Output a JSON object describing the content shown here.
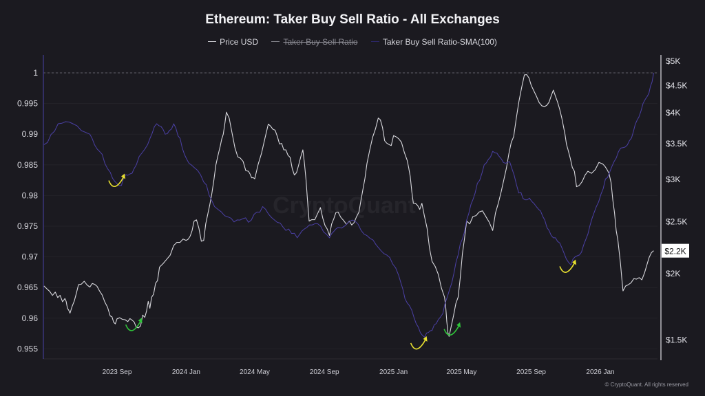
{
  "chart_data": {
    "type": "line",
    "title": "Ethereum: Taker Buy Sell Ratio - All Exchanges",
    "legend": [
      {
        "name": "Price USD",
        "color": "#d9d9de",
        "hidden": false
      },
      {
        "name": "Taker Buy Sell Ratio",
        "color": "#8a8a92",
        "hidden": true
      },
      {
        "name": "Taker Buy Sell Ratio-SMA(100)",
        "color": "#4b40a6",
        "hidden": false
      }
    ],
    "legend_placement": "top-center",
    "x_ticks": [
      "2023 Sep",
      "2024 Jan",
      "2024 May",
      "2024 Sep",
      "2025 Jan",
      "2025 May",
      "2025 Sep",
      "2026 Jan"
    ],
    "x_tick_dates": [
      "2023-09-01",
      "2024-01-01",
      "2024-05-01",
      "2024-09-01",
      "2025-01-01",
      "2025-05-01",
      "2025-09-01",
      "2026-01-01"
    ],
    "y_left": {
      "ticks": [
        "1",
        "0.995",
        "0.99",
        "0.985",
        "0.98",
        "0.975",
        "0.97",
        "0.965",
        "0.96",
        "0.955"
      ],
      "range": [
        0.953,
        1.003
      ]
    },
    "y_right": {
      "scale": "log",
      "ticks": [
        "$5K",
        "$4.5K",
        "$4K",
        "$3.5K",
        "$3K",
        "$2.5K",
        "$2K",
        "$1.5K"
      ],
      "tick_values": [
        5000,
        4500,
        4000,
        3500,
        3000,
        2500,
        2000,
        1500
      ],
      "current_label": "$2.2K"
    },
    "reference_line": 1,
    "watermark": "CryptoQuant",
    "copyright": "© CryptoQuant. All rights reserved",
    "series": [
      {
        "name": "Price USD",
        "axis": "right",
        "color": "#d9d9de",
        "points": [
          [
            "2023-04-25",
            1890
          ],
          [
            "2023-05-15",
            1840
          ],
          [
            "2023-06-01",
            1790
          ],
          [
            "2023-06-10",
            1680
          ],
          [
            "2023-06-25",
            1900
          ],
          [
            "2023-07-15",
            1880
          ],
          [
            "2023-08-01",
            1850
          ],
          [
            "2023-08-20",
            1660
          ],
          [
            "2023-09-01",
            1640
          ],
          [
            "2023-09-20",
            1620
          ],
          [
            "2023-10-05",
            1580
          ],
          [
            "2023-10-20",
            1650
          ],
          [
            "2023-11-01",
            1800
          ],
          [
            "2023-11-15",
            2050
          ],
          [
            "2023-12-10",
            2250
          ],
          [
            "2024-01-01",
            2300
          ],
          [
            "2024-01-15",
            2500
          ],
          [
            "2024-02-01",
            2300
          ],
          [
            "2024-02-15",
            2800
          ],
          [
            "2024-03-01",
            3450
          ],
          [
            "2024-03-12",
            4000
          ],
          [
            "2024-04-01",
            3300
          ],
          [
            "2024-04-20",
            3100
          ],
          [
            "2024-05-01",
            3000
          ],
          [
            "2024-05-25",
            3800
          ],
          [
            "2024-06-10",
            3600
          ],
          [
            "2024-06-25",
            3400
          ],
          [
            "2024-07-10",
            3050
          ],
          [
            "2024-07-25",
            3400
          ],
          [
            "2024-08-05",
            2500
          ],
          [
            "2024-08-25",
            2650
          ],
          [
            "2024-09-10",
            2350
          ],
          [
            "2024-09-25",
            2600
          ],
          [
            "2024-10-15",
            2500
          ],
          [
            "2024-11-01",
            2600
          ],
          [
            "2024-11-15",
            3200
          ],
          [
            "2024-12-05",
            3900
          ],
          [
            "2024-12-20",
            3500
          ],
          [
            "2025-01-05",
            3600
          ],
          [
            "2025-01-25",
            3250
          ],
          [
            "2025-02-05",
            2700
          ],
          [
            "2025-02-20",
            2700
          ],
          [
            "2025-03-10",
            2100
          ],
          [
            "2025-04-01",
            1800
          ],
          [
            "2025-04-09",
            1520
          ],
          [
            "2025-04-25",
            1800
          ],
          [
            "2025-05-10",
            2500
          ],
          [
            "2025-06-01",
            2600
          ],
          [
            "2025-06-25",
            2400
          ],
          [
            "2025-07-15",
            3000
          ],
          [
            "2025-08-01",
            3600
          ],
          [
            "2025-08-20",
            4700
          ],
          [
            "2025-09-05",
            4400
          ],
          [
            "2025-09-25",
            4100
          ],
          [
            "2025-10-10",
            4400
          ],
          [
            "2025-10-25",
            3900
          ],
          [
            "2025-11-05",
            3400
          ],
          [
            "2025-11-20",
            2900
          ],
          [
            "2025-12-10",
            3100
          ],
          [
            "2026-01-05",
            3200
          ],
          [
            "2026-01-20",
            2950
          ],
          [
            "2026-02-01",
            2300
          ],
          [
            "2026-02-10",
            1850
          ],
          [
            "2026-03-01",
            1950
          ],
          [
            "2026-03-20",
            2000
          ],
          [
            "2026-04-05",
            2200
          ]
        ]
      },
      {
        "name": "Taker Buy Sell Ratio-SMA(100)",
        "axis": "left",
        "color": "#4b40a6",
        "points": [
          [
            "2023-04-25",
            0.9883
          ],
          [
            "2023-05-20",
            0.9917
          ],
          [
            "2023-06-15",
            0.9917
          ],
          [
            "2023-07-15",
            0.99
          ],
          [
            "2023-08-01",
            0.9872
          ],
          [
            "2023-08-20",
            0.9838
          ],
          [
            "2023-09-05",
            0.9816
          ],
          [
            "2023-09-20",
            0.9833
          ],
          [
            "2023-10-05",
            0.985
          ],
          [
            "2023-10-25",
            0.9883
          ],
          [
            "2023-11-10",
            0.9917
          ],
          [
            "2023-11-25",
            0.99
          ],
          [
            "2023-12-10",
            0.9917
          ],
          [
            "2023-12-25",
            0.9878
          ],
          [
            "2024-01-10",
            0.985
          ],
          [
            "2024-02-01",
            0.9822
          ],
          [
            "2024-02-20",
            0.9782
          ],
          [
            "2024-03-15",
            0.9765
          ],
          [
            "2024-04-05",
            0.976
          ],
          [
            "2024-04-25",
            0.976
          ],
          [
            "2024-05-15",
            0.9782
          ],
          [
            "2024-06-05",
            0.976
          ],
          [
            "2024-06-25",
            0.9743
          ],
          [
            "2024-07-15",
            0.9731
          ],
          [
            "2024-08-01",
            0.9748
          ],
          [
            "2024-08-20",
            0.9754
          ],
          [
            "2024-09-10",
            0.9731
          ],
          [
            "2024-09-25",
            0.9748
          ],
          [
            "2024-10-20",
            0.976
          ],
          [
            "2024-11-10",
            0.9737
          ],
          [
            "2024-12-01",
            0.972
          ],
          [
            "2024-12-20",
            0.9703
          ],
          [
            "2025-01-10",
            0.967
          ],
          [
            "2025-01-25",
            0.9625
          ],
          [
            "2025-02-10",
            0.9591
          ],
          [
            "2025-02-25",
            0.9569
          ],
          [
            "2025-03-10",
            0.958
          ],
          [
            "2025-03-25",
            0.9602
          ],
          [
            "2025-04-10",
            0.9647
          ],
          [
            "2025-04-25",
            0.9703
          ],
          [
            "2025-05-10",
            0.976
          ],
          [
            "2025-05-25",
            0.9804
          ],
          [
            "2025-06-10",
            0.985
          ],
          [
            "2025-06-25",
            0.9872
          ],
          [
            "2025-07-10",
            0.986
          ],
          [
            "2025-07-25",
            0.9855
          ],
          [
            "2025-08-10",
            0.9804
          ],
          [
            "2025-08-25",
            0.9793
          ],
          [
            "2025-09-10",
            0.9782
          ],
          [
            "2025-09-25",
            0.976
          ],
          [
            "2025-10-10",
            0.9731
          ],
          [
            "2025-10-25",
            0.9715
          ],
          [
            "2025-11-10",
            0.9687
          ],
          [
            "2025-11-25",
            0.9703
          ],
          [
            "2025-12-10",
            0.9737
          ],
          [
            "2025-12-25",
            0.9782
          ],
          [
            "2026-01-10",
            0.9827
          ],
          [
            "2026-01-25",
            0.9855
          ],
          [
            "2026-02-10",
            0.9878
          ],
          [
            "2026-02-25",
            0.9894
          ],
          [
            "2026-03-10",
            0.9928
          ],
          [
            "2026-03-25",
            0.9962
          ],
          [
            "2026-04-05",
            1.0
          ]
        ]
      }
    ],
    "annotations": [
      {
        "type": "arrow",
        "color": "#e8e030",
        "near": [
          "2023-09-01",
          0.982
        ]
      },
      {
        "type": "arrow",
        "color": "#2fc43a",
        "near": [
          "2023-10-01",
          1580
        ]
      },
      {
        "type": "arrow",
        "color": "#e8e030",
        "near": [
          "2025-02-15",
          0.9555
        ]
      },
      {
        "type": "arrow",
        "color": "#2fc43a",
        "near": [
          "2025-04-15",
          1550
        ]
      },
      {
        "type": "arrow",
        "color": "#e8e030",
        "near": [
          "2025-11-05",
          0.968
        ]
      }
    ]
  }
}
